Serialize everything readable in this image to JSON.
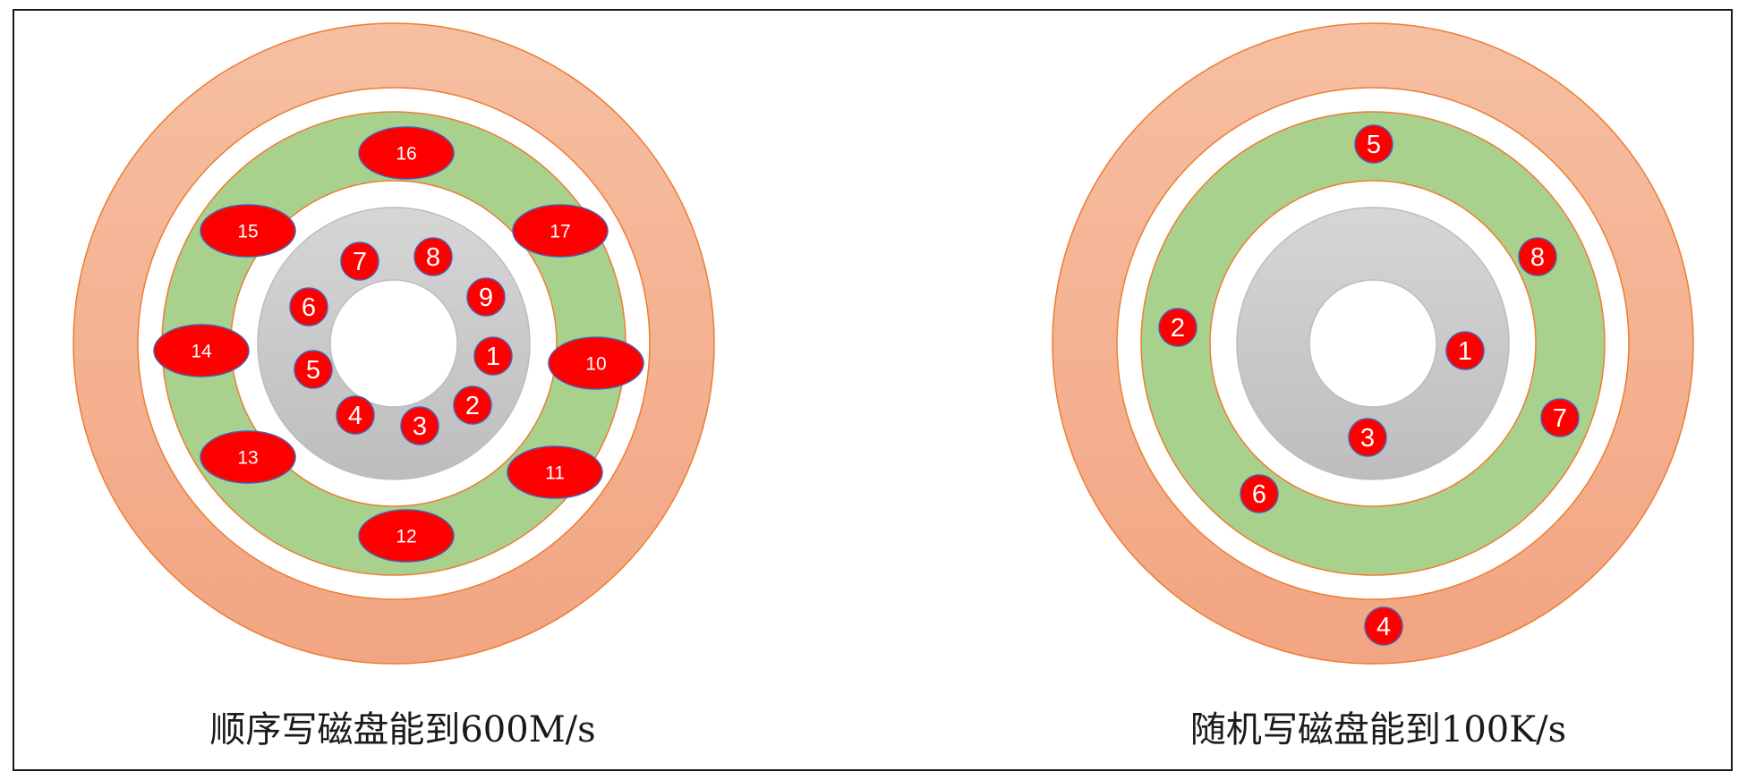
{
  "disks": [
    {
      "id": "sequential",
      "caption": "顺序写磁盘能到600M/s",
      "blocks": [
        "1",
        "2",
        "3",
        "4",
        "5",
        "6",
        "7",
        "8",
        "9",
        "10",
        "11",
        "12",
        "13",
        "14",
        "15",
        "16",
        "17"
      ]
    },
    {
      "id": "random",
      "caption": "随机写磁盘能到100K/s",
      "blocks": [
        "1",
        "2",
        "3",
        "4",
        "5",
        "6",
        "7",
        "8"
      ]
    }
  ],
  "colors": {
    "outer_ring": "#f4aa87",
    "middle_ring": "#a9d18e",
    "inner_ring": "#c9c9c9",
    "ring_stroke": "#ed7d31",
    "block_fill": "#ff0000",
    "block_stroke": "#4a5fb0"
  }
}
